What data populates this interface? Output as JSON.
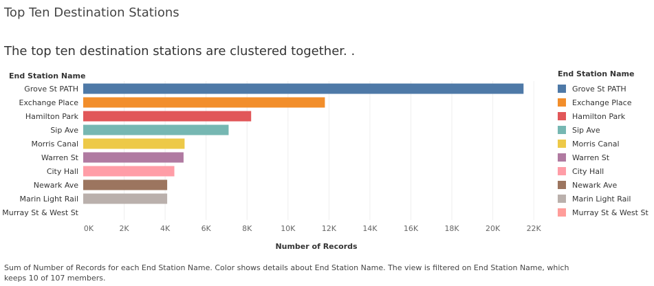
{
  "page": {
    "title": "Top Ten Destination Stations",
    "subtitle": "The top ten destination stations are clustered together.  .",
    "footnote": "Sum of Number of Records for each End Station Name.  Color shows details about End Station Name. The view is filtered on End Station Name, which keeps 10 of 107 members."
  },
  "chart_data": {
    "type": "bar",
    "orientation": "horizontal",
    "title": "",
    "ylabel": "End Station Name",
    "xlabel": "Number of Records",
    "categories": [
      "Grove St PATH",
      "Exchange Place",
      "Hamilton Park",
      "Sip Ave",
      "Morris Canal",
      "Warren St",
      "City Hall",
      "Newark Ave",
      "Marin Light Rail",
      "Murray St & West St"
    ],
    "values": [
      21500,
      11800,
      8200,
      7100,
      4950,
      4900,
      4450,
      4100,
      4100,
      0
    ],
    "colors": [
      "#4e79a7",
      "#f28e2b",
      "#e15759",
      "#76b7b2",
      "#edc948",
      "#b07aa1",
      "#ff9da7",
      "#9c755f",
      "#bab0ac",
      "#ff9d9a"
    ],
    "xlim": [
      0,
      22800
    ],
    "xticks": [
      0,
      2000,
      4000,
      6000,
      8000,
      10000,
      12000,
      14000,
      16000,
      18000,
      20000,
      22000
    ],
    "xtick_labels": [
      "0K",
      "2K",
      "4K",
      "6K",
      "8K",
      "10K",
      "12K",
      "14K",
      "16K",
      "18K",
      "20K",
      "22K"
    ],
    "grid": true,
    "legend": {
      "title": "End Station Name",
      "position": "right"
    }
  }
}
